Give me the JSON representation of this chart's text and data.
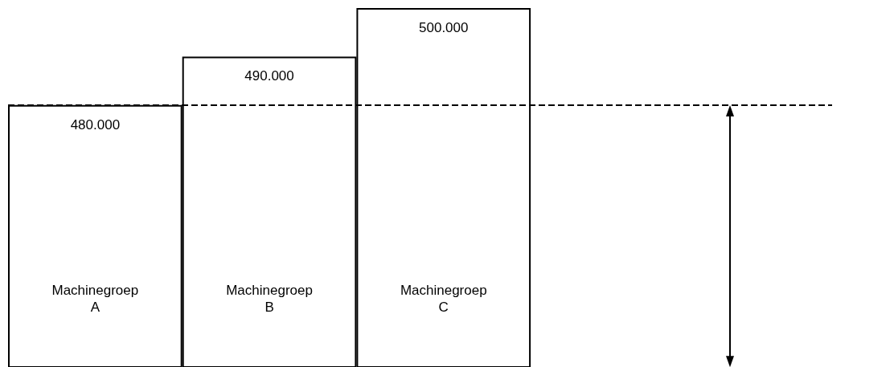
{
  "chart_data": {
    "type": "bar",
    "categories": [
      "Machinegroep\nA",
      "Machinegroep\nB",
      "Machinegroep\nC"
    ],
    "values": [
      480000,
      490000,
      500000
    ],
    "value_labels": [
      "480.000",
      "490.000",
      "500.000"
    ],
    "color": "#ffffff",
    "ylim": [
      426000,
      500000
    ],
    "ref_lines": [
      {
        "axis": "y",
        "value": 480000,
        "color": "#000000",
        "line_style": "dashed"
      }
    ]
  }
}
